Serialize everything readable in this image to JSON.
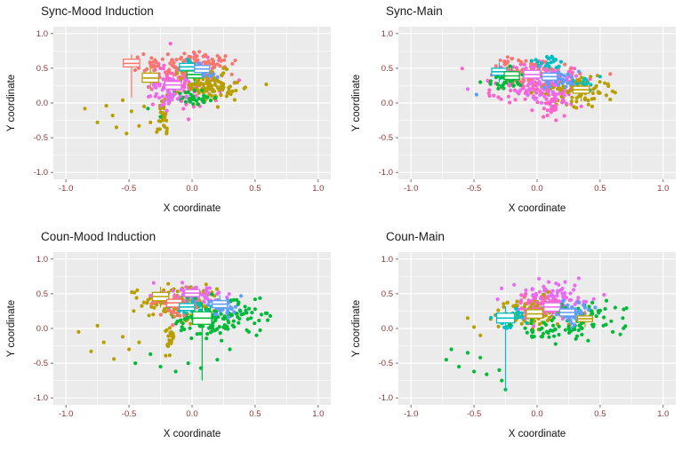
{
  "figure": {
    "background": "#ffffff",
    "panel_background": "#EBEBEB",
    "grid_color": "#ffffff",
    "tick_label_color": "#993333",
    "axis_title_color": "#111111",
    "title_color": "#1a1a1a",
    "boxplot_fill": "#ffffff"
  },
  "palette": {
    "red": "#F8766D",
    "pink": "#FF61CC",
    "magenta": "#E76BF3",
    "olive": "#B79F00",
    "green": "#00BA38",
    "teal": "#00BFC4",
    "blue": "#619CFF"
  },
  "axes": {
    "ticks": [
      -1.0,
      -0.5,
      0.0,
      0.5,
      1.0
    ],
    "tick_labels": [
      "-1.0",
      "-0.5",
      "0.0",
      "0.5",
      "1.0"
    ],
    "minor_ticks": [
      -0.75,
      -0.25,
      0.25,
      0.75
    ],
    "xlim": [
      -1.1,
      1.1
    ],
    "ylim": [
      -1.1,
      1.1
    ]
  },
  "chart_data": [
    {
      "type": "scatter+boxplot",
      "title": "Sync-Mood Induction",
      "xlabel": "X coordinate",
      "ylabel": "Y coordinate",
      "xlim": [
        -1.1,
        1.1
      ],
      "ylim": [
        -1.1,
        1.1
      ],
      "clusters": [
        {
          "color": "pink",
          "cx": -0.05,
          "cy": 0.3,
          "sx": 0.14,
          "sy": 0.17,
          "n": 120
        },
        {
          "color": "red",
          "cx": 0.0,
          "cy": 0.55,
          "sx": 0.13,
          "sy": 0.09,
          "n": 100
        },
        {
          "color": "olive",
          "cx": 0.15,
          "cy": 0.25,
          "sx": 0.11,
          "sy": 0.12,
          "n": 110
        },
        {
          "color": "olive",
          "cx": -0.22,
          "cy": -0.15,
          "sx": 0.025,
          "sy": 0.16,
          "n": 28
        },
        {
          "color": "green",
          "cx": 0.02,
          "cy": 0.07,
          "sx": 0.08,
          "sy": 0.07,
          "n": 35
        },
        {
          "color": "magenta",
          "cx": -0.18,
          "cy": 0.14,
          "sx": 0.07,
          "sy": 0.1,
          "n": 40
        },
        {
          "color": "teal",
          "cx": -0.02,
          "cy": 0.52,
          "sx": 0.05,
          "sy": 0.05,
          "n": 20
        },
        {
          "color": "blue",
          "cx": 0.1,
          "cy": 0.45,
          "sx": 0.05,
          "sy": 0.06,
          "n": 18
        },
        {
          "color": "red",
          "cx": -0.33,
          "cy": 0.56,
          "sx": 0.07,
          "sy": 0.06,
          "n": 22
        }
      ],
      "outliers": [
        {
          "color": "olive",
          "pts": [
            [
              -0.85,
              -0.08
            ],
            [
              -0.75,
              -0.28
            ],
            [
              -0.63,
              -0.18
            ],
            [
              -0.55,
              0.04
            ],
            [
              -0.48,
              -0.12
            ],
            [
              -0.42,
              -0.33
            ],
            [
              -0.33,
              -0.28
            ],
            [
              -0.68,
              -0.04
            ],
            [
              -0.52,
              -0.44
            ],
            [
              -0.38,
              -0.05
            ],
            [
              -0.28,
              -0.42
            ],
            [
              -0.6,
              -0.35
            ]
          ]
        },
        {
          "color": "green",
          "pts": [
            [
              -0.35,
              -0.08
            ],
            [
              -0.25,
              -0.2
            ]
          ]
        }
      ],
      "boxplots": [
        {
          "color": "red",
          "x": -0.48,
          "w": 0.13,
          "lo": 0.08,
          "q1": 0.52,
          "med": 0.57,
          "q3": 0.63,
          "hi": 0.7
        },
        {
          "color": "olive",
          "x": -0.33,
          "w": 0.13,
          "lo": 0.18,
          "q1": 0.3,
          "med": 0.36,
          "q3": 0.43,
          "hi": 0.52
        },
        {
          "color": "magenta",
          "x": -0.15,
          "w": 0.13,
          "lo": 0.02,
          "q1": 0.2,
          "med": 0.26,
          "q3": 0.31,
          "hi": 0.4
        },
        {
          "color": "teal",
          "x": -0.04,
          "w": 0.12,
          "lo": 0.38,
          "q1": 0.47,
          "med": 0.52,
          "q3": 0.57,
          "hi": 0.64
        },
        {
          "color": "green",
          "x": 0.02,
          "w": 0.12,
          "lo": 0.28,
          "q1": 0.36,
          "med": 0.41,
          "q3": 0.46,
          "hi": 0.54
        },
        {
          "color": "blue",
          "x": 0.08,
          "w": 0.12,
          "lo": 0.36,
          "q1": 0.44,
          "med": 0.49,
          "q3": 0.54,
          "hi": 0.6
        }
      ]
    },
    {
      "type": "scatter+boxplot",
      "title": "Sync-Main",
      "xlabel": "X coordinate",
      "ylabel": "Y coordinate",
      "xlim": [
        -1.1,
        1.1
      ],
      "ylim": [
        -1.1,
        1.1
      ],
      "clusters": [
        {
          "color": "pink",
          "cx": 0.0,
          "cy": 0.3,
          "sx": 0.19,
          "sy": 0.15,
          "n": 150
        },
        {
          "color": "red",
          "cx": -0.05,
          "cy": 0.45,
          "sx": 0.15,
          "sy": 0.11,
          "n": 90
        },
        {
          "color": "olive",
          "cx": 0.3,
          "cy": 0.18,
          "sx": 0.13,
          "sy": 0.11,
          "n": 90
        },
        {
          "color": "magenta",
          "cx": 0.08,
          "cy": 0.22,
          "sx": 0.1,
          "sy": 0.12,
          "n": 60
        },
        {
          "color": "teal",
          "cx": 0.1,
          "cy": 0.58,
          "sx": 0.08,
          "sy": 0.05,
          "n": 20
        },
        {
          "color": "blue",
          "cx": 0.22,
          "cy": 0.32,
          "sx": 0.08,
          "sy": 0.08,
          "n": 30
        },
        {
          "color": "green",
          "cx": -0.25,
          "cy": 0.35,
          "sx": 0.08,
          "sy": 0.09,
          "n": 35
        },
        {
          "color": "teal",
          "cx": 0.38,
          "cy": 0.3,
          "sx": 0.04,
          "sy": 0.05,
          "n": 12
        },
        {
          "color": "pink",
          "cx": 0.1,
          "cy": -0.05,
          "sx": 0.05,
          "sy": 0.08,
          "n": 25
        }
      ],
      "outliers": [
        {
          "color": "magenta",
          "pts": [
            [
              -0.55,
              0.2
            ]
          ]
        },
        {
          "color": "blue",
          "pts": [
            [
              -0.48,
              0.12
            ]
          ]
        },
        {
          "color": "olive",
          "pts": [
            [
              0.62,
              0.15
            ],
            [
              0.58,
              0.05
            ]
          ]
        },
        {
          "color": "teal",
          "pts": [
            [
              0.5,
              0.38
            ]
          ]
        },
        {
          "color": "green",
          "pts": [
            [
              -0.45,
              0.3
            ]
          ]
        },
        {
          "color": "pink",
          "pts": [
            [
              0.15,
              -0.25
            ],
            [
              0.05,
              -0.2
            ]
          ]
        }
      ],
      "boxplots": [
        {
          "color": "teal",
          "x": -0.3,
          "w": 0.12,
          "lo": 0.3,
          "q1": 0.4,
          "med": 0.45,
          "q3": 0.5,
          "hi": 0.58
        },
        {
          "color": "green",
          "x": -0.2,
          "w": 0.12,
          "lo": 0.25,
          "q1": 0.34,
          "med": 0.39,
          "q3": 0.45,
          "hi": 0.53
        },
        {
          "color": "magenta",
          "x": -0.04,
          "w": 0.13,
          "lo": 0.26,
          "q1": 0.36,
          "med": 0.41,
          "q3": 0.47,
          "hi": 0.55
        },
        {
          "color": "blue",
          "x": 0.1,
          "w": 0.12,
          "lo": 0.24,
          "q1": 0.33,
          "med": 0.38,
          "q3": 0.43,
          "hi": 0.5
        },
        {
          "color": "olive",
          "x": 0.35,
          "w": 0.13,
          "lo": 0.02,
          "q1": 0.14,
          "med": 0.19,
          "q3": 0.24,
          "hi": 0.33
        }
      ]
    },
    {
      "type": "scatter+boxplot",
      "title": "Coun-Mood Induction",
      "xlabel": "X coordinate",
      "ylabel": "Y coordinate",
      "xlim": [
        -1.1,
        1.1
      ],
      "ylim": [
        -1.1,
        1.1
      ],
      "clusters": [
        {
          "color": "olive",
          "cx": -0.12,
          "cy": 0.38,
          "sx": 0.14,
          "sy": 0.13,
          "n": 110
        },
        {
          "color": "magenta",
          "cx": 0.02,
          "cy": 0.5,
          "sx": 0.12,
          "sy": 0.08,
          "n": 60
        },
        {
          "color": "green",
          "cx": 0.15,
          "cy": 0.12,
          "sx": 0.16,
          "sy": 0.13,
          "n": 120
        },
        {
          "color": "teal",
          "cx": -0.02,
          "cy": 0.3,
          "sx": 0.07,
          "sy": 0.07,
          "n": 30
        },
        {
          "color": "blue",
          "cx": 0.27,
          "cy": 0.33,
          "sx": 0.07,
          "sy": 0.07,
          "n": 30
        },
        {
          "color": "red",
          "cx": -0.13,
          "cy": 0.28,
          "sx": 0.07,
          "sy": 0.08,
          "n": 35
        },
        {
          "color": "olive",
          "cx": -0.17,
          "cy": -0.2,
          "sx": 0.025,
          "sy": 0.15,
          "n": 25
        },
        {
          "color": "green",
          "cx": 0.45,
          "cy": 0.25,
          "sx": 0.08,
          "sy": 0.12,
          "n": 20
        }
      ],
      "outliers": [
        {
          "color": "olive",
          "pts": [
            [
              -0.9,
              -0.05
            ],
            [
              -0.8,
              -0.33
            ],
            [
              -0.7,
              -0.2
            ],
            [
              -0.62,
              -0.44
            ],
            [
              -0.5,
              -0.3
            ],
            [
              -0.75,
              0.04
            ],
            [
              -0.55,
              -0.12
            ],
            [
              -0.42,
              -0.2
            ]
          ]
        },
        {
          "color": "green",
          "pts": [
            [
              -0.45,
              -0.5
            ],
            [
              -0.33,
              -0.37
            ],
            [
              -0.25,
              -0.55
            ],
            [
              -0.13,
              -0.62
            ],
            [
              -0.03,
              -0.5
            ],
            [
              0.07,
              -0.57
            ],
            [
              0.55,
              0.2
            ],
            [
              0.6,
              0.12
            ],
            [
              0.5,
              0.42
            ],
            [
              0.45,
              -0.05
            ],
            [
              0.3,
              -0.3
            ],
            [
              0.2,
              -0.45
            ]
          ]
        }
      ],
      "boxplots": [
        {
          "color": "olive",
          "x": -0.25,
          "w": 0.13,
          "lo": 0.3,
          "q1": 0.4,
          "med": 0.46,
          "q3": 0.52,
          "hi": 0.6
        },
        {
          "color": "red",
          "x": -0.14,
          "w": 0.12,
          "lo": 0.22,
          "q1": 0.31,
          "med": 0.37,
          "q3": 0.42,
          "hi": 0.5
        },
        {
          "color": "magenta",
          "x": 0.0,
          "w": 0.12,
          "lo": 0.4,
          "q1": 0.46,
          "med": 0.51,
          "q3": 0.56,
          "hi": 0.62
        },
        {
          "color": "teal",
          "x": -0.04,
          "w": 0.12,
          "lo": 0.18,
          "q1": 0.26,
          "med": 0.31,
          "q3": 0.36,
          "hi": 0.44
        },
        {
          "color": "green",
          "x": 0.08,
          "w": 0.15,
          "lo": -0.75,
          "q1": 0.06,
          "med": 0.15,
          "q3": 0.24,
          "hi": 0.35
        },
        {
          "color": "blue",
          "x": 0.22,
          "w": 0.12,
          "lo": 0.22,
          "q1": 0.3,
          "med": 0.35,
          "q3": 0.4,
          "hi": 0.48
        }
      ]
    },
    {
      "type": "scatter+boxplot",
      "title": "Coun-Main",
      "xlabel": "X coordinate",
      "ylabel": "Y coordinate",
      "xlim": [
        -1.1,
        1.1
      ],
      "ylim": [
        -1.1,
        1.1
      ],
      "clusters": [
        {
          "color": "magenta",
          "cx": 0.12,
          "cy": 0.42,
          "sx": 0.14,
          "sy": 0.11,
          "n": 110
        },
        {
          "color": "olive",
          "cx": -0.05,
          "cy": 0.22,
          "sx": 0.13,
          "sy": 0.12,
          "n": 100
        },
        {
          "color": "green",
          "cx": 0.35,
          "cy": 0.1,
          "sx": 0.15,
          "sy": 0.13,
          "n": 70
        },
        {
          "color": "blue",
          "cx": 0.3,
          "cy": 0.22,
          "sx": 0.09,
          "sy": 0.08,
          "n": 40
        },
        {
          "color": "teal",
          "cx": -0.18,
          "cy": 0.15,
          "sx": 0.07,
          "sy": 0.08,
          "n": 30
        },
        {
          "color": "pink",
          "cx": 0.02,
          "cy": 0.32,
          "sx": 0.09,
          "sy": 0.09,
          "n": 40
        },
        {
          "color": "green",
          "cx": 0.1,
          "cy": -0.05,
          "sx": 0.1,
          "sy": 0.07,
          "n": 30
        }
      ],
      "outliers": [
        {
          "color": "green",
          "pts": [
            [
              -0.68,
              -0.3
            ],
            [
              -0.72,
              -0.45
            ],
            [
              -0.62,
              -0.55
            ],
            [
              -0.5,
              -0.62
            ],
            [
              -0.4,
              -0.66
            ],
            [
              -0.3,
              -0.6
            ],
            [
              -0.45,
              -0.42
            ],
            [
              -0.55,
              -0.35
            ],
            [
              -0.25,
              -0.88
            ],
            [
              -0.28,
              -0.75
            ],
            [
              0.62,
              0.3
            ],
            [
              0.68,
              0.15
            ],
            [
              0.6,
              -0.05
            ],
            [
              0.55,
              0.4
            ]
          ]
        },
        {
          "color": "olive",
          "pts": [
            [
              -0.5,
              0.02
            ],
            [
              -0.55,
              0.15
            ],
            [
              -0.45,
              -0.1
            ]
          ]
        },
        {
          "color": "magenta",
          "pts": [
            [
              0.3,
              0.62
            ],
            [
              0.15,
              0.65
            ]
          ]
        }
      ],
      "boxplots": [
        {
          "color": "teal",
          "x": -0.25,
          "w": 0.14,
          "lo": -0.9,
          "q1": 0.08,
          "med": 0.15,
          "q3": 0.22,
          "hi": 0.32
        },
        {
          "color": "olive",
          "x": -0.02,
          "w": 0.13,
          "lo": 0.05,
          "q1": 0.15,
          "med": 0.21,
          "q3": 0.27,
          "hi": 0.36
        },
        {
          "color": "magenta",
          "x": 0.12,
          "w": 0.13,
          "lo": 0.15,
          "q1": 0.25,
          "med": 0.31,
          "q3": 0.37,
          "hi": 0.45
        },
        {
          "color": "blue",
          "x": 0.24,
          "w": 0.12,
          "lo": 0.1,
          "q1": 0.18,
          "med": 0.23,
          "q3": 0.28,
          "hi": 0.36
        },
        {
          "color": "olive",
          "x": 0.38,
          "w": 0.12,
          "lo": 0.02,
          "q1": 0.1,
          "med": 0.14,
          "q3": 0.18,
          "hi": 0.26
        }
      ]
    }
  ]
}
